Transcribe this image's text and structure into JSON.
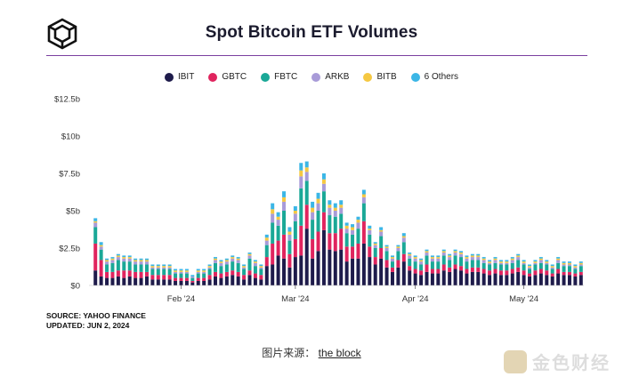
{
  "header": {
    "title": "Spot Bitcoin ETF Volumes"
  },
  "chart_data": {
    "type": "bar",
    "stacked": true,
    "title": "Spot Bitcoin ETF Volumes",
    "xlabel": "",
    "ylabel": "",
    "ylim": [
      0,
      12.5
    ],
    "y_ticks": [
      "$0",
      "$2.5b",
      "$5b",
      "$7.5b",
      "$10b",
      "$12.5b"
    ],
    "x_tick_labels": [
      {
        "label": "Feb '24",
        "index": 15
      },
      {
        "label": "Mar '24",
        "index": 35
      },
      {
        "label": "Apr '24",
        "index": 56
      },
      {
        "label": "May '24",
        "index": 75
      }
    ],
    "legend_position": "top",
    "grid": false,
    "series": [
      {
        "name": "IBIT",
        "color": "#1e1b4b",
        "values": [
          1.0,
          0.6,
          0.5,
          0.5,
          0.6,
          0.5,
          0.6,
          0.5,
          0.5,
          0.6,
          0.4,
          0.4,
          0.4,
          0.4,
          0.3,
          0.3,
          0.3,
          0.2,
          0.3,
          0.3,
          0.4,
          0.6,
          0.5,
          0.6,
          0.7,
          0.6,
          0.4,
          0.7,
          0.5,
          0.4,
          1.3,
          1.4,
          2.0,
          1.8,
          1.2,
          1.9,
          2.0,
          3.8,
          1.8,
          2.3,
          3.7,
          2.4,
          2.3,
          2.4,
          1.6,
          1.8,
          1.8,
          2.8,
          1.9,
          1.4,
          1.8,
          1.2,
          0.9,
          1.2,
          1.6,
          1.0,
          0.8,
          0.7,
          0.9,
          0.8,
          0.8,
          1.0,
          0.9,
          1.1,
          1.0,
          0.8,
          0.9,
          0.9,
          0.8,
          0.7,
          0.8,
          0.7,
          0.7,
          0.8,
          0.9,
          0.7,
          0.6,
          0.7,
          0.8,
          0.7,
          0.6,
          0.8,
          0.7,
          0.7,
          0.6,
          0.7
        ]
      },
      {
        "name": "GBTC",
        "color": "#e0245e",
        "values": [
          1.8,
          1.1,
          0.4,
          0.4,
          0.4,
          0.5,
          0.4,
          0.4,
          0.4,
          0.3,
          0.3,
          0.3,
          0.3,
          0.3,
          0.2,
          0.2,
          0.2,
          0.1,
          0.2,
          0.2,
          0.3,
          0.3,
          0.3,
          0.3,
          0.3,
          0.3,
          0.3,
          0.3,
          0.3,
          0.3,
          0.6,
          1.4,
          1.0,
          1.6,
          0.9,
          1.2,
          2.0,
          1.6,
          1.3,
          1.3,
          1.2,
          1.1,
          1.2,
          1.4,
          1.0,
          0.8,
          1.0,
          1.5,
          0.7,
          0.5,
          0.7,
          0.5,
          0.3,
          0.5,
          0.5,
          0.3,
          0.3,
          0.3,
          0.5,
          0.3,
          0.3,
          0.4,
          0.3,
          0.3,
          0.3,
          0.3,
          0.3,
          0.3,
          0.3,
          0.3,
          0.3,
          0.3,
          0.3,
          0.3,
          0.3,
          0.3,
          0.2,
          0.3,
          0.3,
          0.3,
          0.2,
          0.3,
          0.2,
          0.2,
          0.2,
          0.2
        ]
      },
      {
        "name": "FBTC",
        "color": "#1aa897",
        "values": [
          1.1,
          0.7,
          0.5,
          0.6,
          0.7,
          0.6,
          0.6,
          0.5,
          0.5,
          0.5,
          0.4,
          0.4,
          0.4,
          0.4,
          0.3,
          0.3,
          0.3,
          0.2,
          0.3,
          0.3,
          0.4,
          0.6,
          0.5,
          0.5,
          0.6,
          0.6,
          0.4,
          0.8,
          0.5,
          0.4,
          0.8,
          1.4,
          1.0,
          1.6,
          0.9,
          1.2,
          2.5,
          1.6,
          1.3,
          1.4,
          1.4,
          1.2,
          1.1,
          1.0,
          0.9,
          0.8,
          1.0,
          1.2,
          0.8,
          0.6,
          0.8,
          0.6,
          0.4,
          0.6,
          0.8,
          0.5,
          0.5,
          0.4,
          0.6,
          0.5,
          0.5,
          0.6,
          0.5,
          0.6,
          0.6,
          0.5,
          0.5,
          0.5,
          0.4,
          0.4,
          0.4,
          0.4,
          0.4,
          0.4,
          0.5,
          0.4,
          0.3,
          0.4,
          0.4,
          0.4,
          0.3,
          0.4,
          0.4,
          0.4,
          0.3,
          0.4
        ]
      },
      {
        "name": "ARKB",
        "color": "#a89bd8",
        "values": [
          0.3,
          0.2,
          0.2,
          0.2,
          0.2,
          0.2,
          0.2,
          0.2,
          0.2,
          0.2,
          0.1,
          0.1,
          0.1,
          0.1,
          0.1,
          0.1,
          0.1,
          0.1,
          0.1,
          0.1,
          0.1,
          0.2,
          0.2,
          0.2,
          0.2,
          0.2,
          0.1,
          0.2,
          0.2,
          0.1,
          0.3,
          0.6,
          0.4,
          0.6,
          0.4,
          0.5,
          0.8,
          0.6,
          0.5,
          0.5,
          0.5,
          0.5,
          0.4,
          0.4,
          0.3,
          0.3,
          0.4,
          0.4,
          0.3,
          0.2,
          0.3,
          0.2,
          0.2,
          0.2,
          0.3,
          0.2,
          0.2,
          0.2,
          0.2,
          0.2,
          0.2,
          0.2,
          0.2,
          0.2,
          0.2,
          0.2,
          0.2,
          0.2,
          0.2,
          0.1,
          0.2,
          0.1,
          0.1,
          0.2,
          0.2,
          0.1,
          0.1,
          0.1,
          0.2,
          0.1,
          0.1,
          0.2,
          0.1,
          0.1,
          0.1,
          0.1
        ]
      },
      {
        "name": "BITB",
        "color": "#f5c842",
        "values": [
          0.1,
          0.1,
          0.1,
          0.1,
          0.1,
          0.1,
          0.1,
          0.1,
          0.1,
          0.1,
          0.1,
          0.1,
          0.1,
          0.1,
          0.1,
          0.1,
          0.1,
          0.0,
          0.1,
          0.1,
          0.1,
          0.1,
          0.1,
          0.1,
          0.1,
          0.1,
          0.1,
          0.1,
          0.1,
          0.1,
          0.2,
          0.3,
          0.2,
          0.3,
          0.2,
          0.2,
          0.4,
          0.3,
          0.3,
          0.3,
          0.3,
          0.2,
          0.2,
          0.2,
          0.2,
          0.2,
          0.2,
          0.2,
          0.1,
          0.1,
          0.1,
          0.1,
          0.1,
          0.1,
          0.1,
          0.1,
          0.1,
          0.1,
          0.1,
          0.1,
          0.1,
          0.1,
          0.1,
          0.1,
          0.1,
          0.1,
          0.1,
          0.1,
          0.1,
          0.1,
          0.1,
          0.1,
          0.1,
          0.1,
          0.1,
          0.1,
          0.1,
          0.1,
          0.1,
          0.1,
          0.1,
          0.1,
          0.1,
          0.1,
          0.1,
          0.1
        ]
      },
      {
        "name": "6 Others",
        "color": "#3bb6e6",
        "values": [
          0.2,
          0.2,
          0.1,
          0.1,
          0.1,
          0.1,
          0.1,
          0.1,
          0.1,
          0.1,
          0.1,
          0.1,
          0.1,
          0.1,
          0.1,
          0.1,
          0.1,
          0.1,
          0.1,
          0.1,
          0.1,
          0.1,
          0.1,
          0.1,
          0.1,
          0.1,
          0.1,
          0.1,
          0.1,
          0.1,
          0.2,
          0.4,
          0.3,
          0.4,
          0.3,
          0.3,
          0.5,
          0.4,
          0.4,
          0.4,
          0.4,
          0.3,
          0.3,
          0.3,
          0.2,
          0.2,
          0.2,
          0.3,
          0.2,
          0.1,
          0.2,
          0.1,
          0.1,
          0.1,
          0.2,
          0.1,
          0.1,
          0.1,
          0.1,
          0.1,
          0.1,
          0.1,
          0.1,
          0.1,
          0.1,
          0.1,
          0.1,
          0.1,
          0.1,
          0.1,
          0.1,
          0.1,
          0.1,
          0.1,
          0.1,
          0.1,
          0.1,
          0.1,
          0.1,
          0.1,
          0.1,
          0.1,
          0.1,
          0.1,
          0.1,
          0.1
        ]
      }
    ]
  },
  "footer": {
    "source": "SOURCE: YAHOO FINANCE",
    "updated": "UPDATED: JUN 2, 2024",
    "caption_prefix": "图片来源：",
    "caption_link": "the block",
    "watermark_text": "金色财经"
  },
  "icons": {
    "logo": "the-block-cube-logo-icon",
    "watermark": "golden-finance-logo-icon"
  }
}
